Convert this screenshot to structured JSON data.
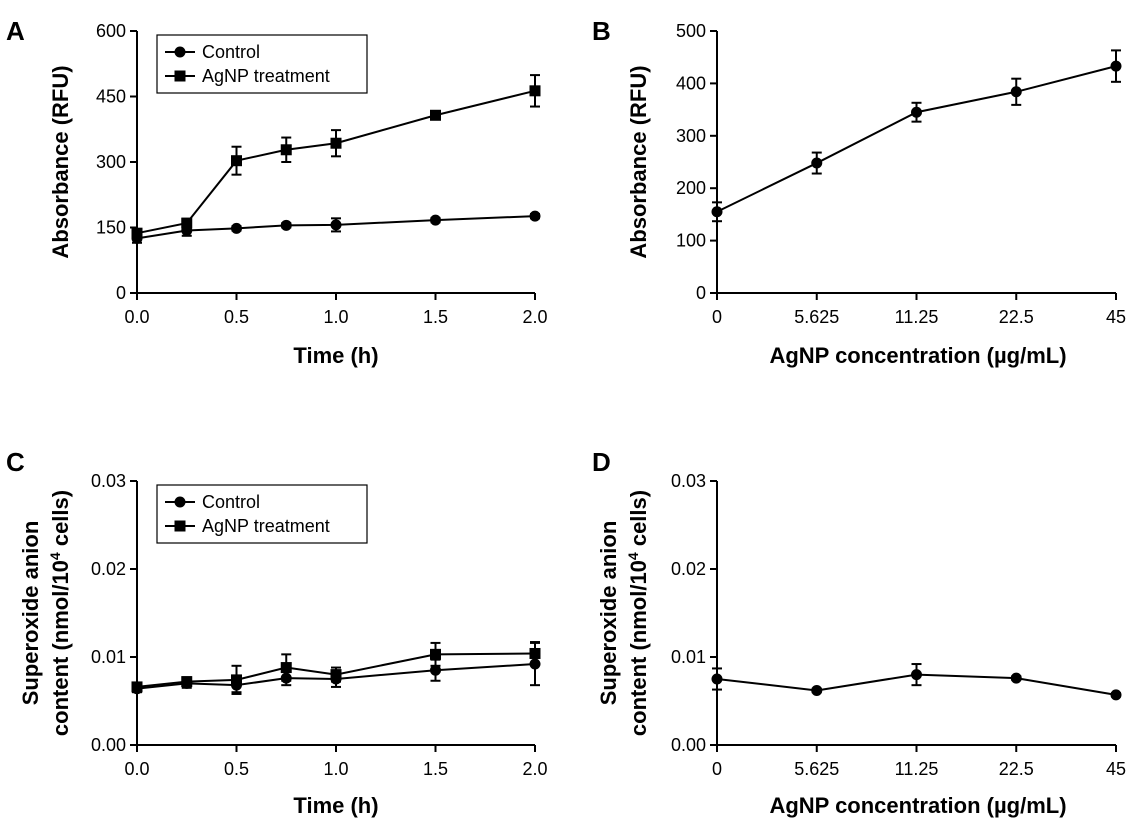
{
  "chart_data": [
    {
      "panel": "A",
      "type": "line",
      "xlabel": "Time (h)",
      "ylabel": "Absorbance (RFU)",
      "x_ticks": [
        "0.0",
        "0.5",
        "1.0",
        "1.5",
        "2.0"
      ],
      "y_ticks": [
        "0",
        "150",
        "300",
        "450",
        "600"
      ],
      "xlim": [
        0,
        2
      ],
      "ylim": [
        0,
        600
      ],
      "legend": "top-left",
      "series": [
        {
          "name": "Control",
          "marker": "circle",
          "x": [
            0,
            0.25,
            0.5,
            0.75,
            1.0,
            1.5,
            2.0
          ],
          "y": [
            125,
            143,
            148,
            155,
            156,
            167,
            176
          ],
          "err": [
            10,
            12,
            5,
            5,
            15,
            5,
            5
          ]
        },
        {
          "name": "AgNP treatment",
          "marker": "square",
          "x": [
            0,
            0.25,
            0.5,
            0.75,
            1.0,
            1.5,
            2.0
          ],
          "y": [
            137,
            160,
            303,
            328,
            343,
            407,
            463
          ],
          "err": [
            8,
            10,
            32,
            28,
            30,
            5,
            36
          ]
        }
      ]
    },
    {
      "panel": "B",
      "type": "line",
      "xlabel": "AgNP concentration (µg/mL)",
      "ylabel": "Absorbance (RFU)",
      "categories": [
        "0",
        "5.625",
        "11.25",
        "22.5",
        "45"
      ],
      "y_ticks": [
        "0",
        "100",
        "200",
        "300",
        "400",
        "500"
      ],
      "ylim": [
        0,
        500
      ],
      "series": [
        {
          "values": [
            155,
            248,
            345,
            384,
            433
          ],
          "err": [
            18,
            20,
            18,
            25,
            30
          ],
          "marker": "circle"
        }
      ]
    },
    {
      "panel": "C",
      "type": "line",
      "xlabel": "Time (h)",
      "ylabel_line1": "Superoxide anion",
      "ylabel_line2": "content (nmol/10",
      "ylabel_sup": "4",
      "ylabel_line2_end": " cells)",
      "x_ticks": [
        "0.0",
        "0.5",
        "1.0",
        "1.5",
        "2.0"
      ],
      "y_ticks": [
        "0.00",
        "0.01",
        "0.02",
        "0.03"
      ],
      "xlim": [
        0,
        2
      ],
      "ylim": [
        0,
        0.03
      ],
      "legend": "top-left",
      "series": [
        {
          "name": "Control",
          "marker": "circle",
          "x": [
            0,
            0.25,
            0.5,
            0.75,
            1.0,
            1.5,
            2.0
          ],
          "y": [
            0.0064,
            0.007,
            0.0068,
            0.0076,
            0.0075,
            0.0085,
            0.0092
          ],
          "err": [
            0.0004,
            0.0005,
            0.0008,
            0.0008,
            0.0009,
            0.0012,
            0.0024
          ]
        },
        {
          "name": "AgNP treatment",
          "marker": "square",
          "x": [
            0,
            0.25,
            0.5,
            0.75,
            1.0,
            1.5,
            2.0
          ],
          "y": [
            0.0066,
            0.0072,
            0.0074,
            0.0088,
            0.008,
            0.0103,
            0.0104
          ],
          "err": [
            0.0003,
            0.0005,
            0.0016,
            0.0015,
            0.0008,
            0.0013,
            0.0013
          ]
        }
      ]
    },
    {
      "panel": "D",
      "type": "line",
      "xlabel": "AgNP concentration (µg/mL)",
      "ylabel_line1": "Superoxide anion",
      "ylabel_line2": "content (nmol/10",
      "ylabel_sup": "4",
      "ylabel_line2_end": " cells)",
      "categories": [
        "0",
        "5.625",
        "11.25",
        "22.5",
        "45"
      ],
      "y_ticks": [
        "0.00",
        "0.01",
        "0.02",
        "0.03"
      ],
      "ylim": [
        0,
        0.03
      ],
      "series": [
        {
          "values": [
            0.0075,
            0.0062,
            0.008,
            0.0076,
            0.0057
          ],
          "err": [
            0.0012,
            0.0002,
            0.0012,
            0.0002,
            0.0002
          ],
          "marker": "circle"
        }
      ]
    }
  ]
}
